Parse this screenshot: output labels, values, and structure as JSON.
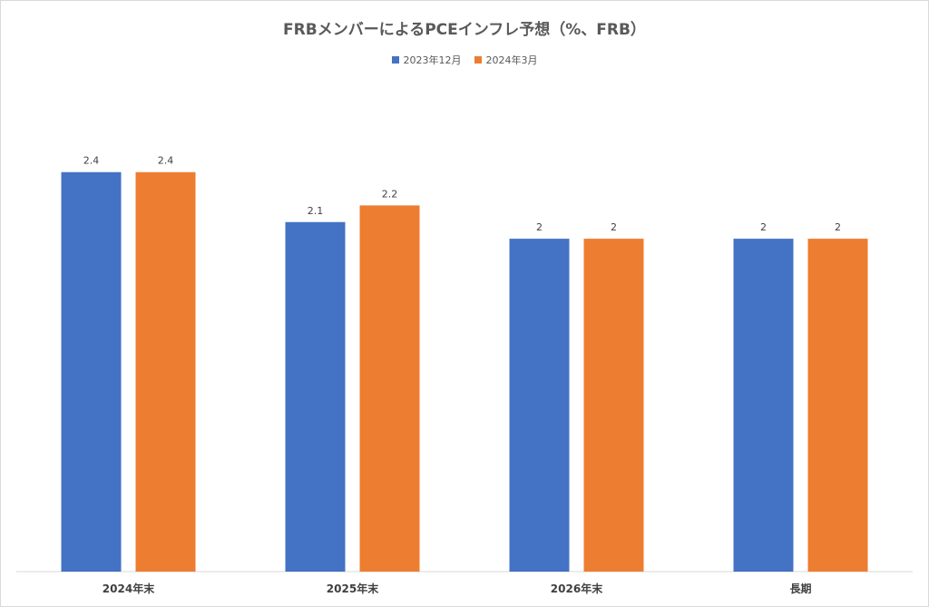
{
  "chart_data": {
    "type": "bar",
    "title": "FRBメンバーによるPCEインフレ予想（%、FRB）",
    "categories": [
      "2024年末",
      "2025年末",
      "2026年末",
      "長期"
    ],
    "series": [
      {
        "name": "2023年12月",
        "values": [
          2.4,
          2.1,
          2,
          2
        ],
        "labels": [
          "2.4",
          "2.1",
          "2",
          "2"
        ],
        "color": "#4472C4"
      },
      {
        "name": "2024年3月",
        "values": [
          2.4,
          2.2,
          2,
          2
        ],
        "labels": [
          "2.4",
          "2.2",
          "2",
          "2"
        ],
        "color": "#ED7D31"
      }
    ],
    "ylim": [
      0,
      2.9
    ],
    "legend_position": "top-center",
    "grid": false
  }
}
